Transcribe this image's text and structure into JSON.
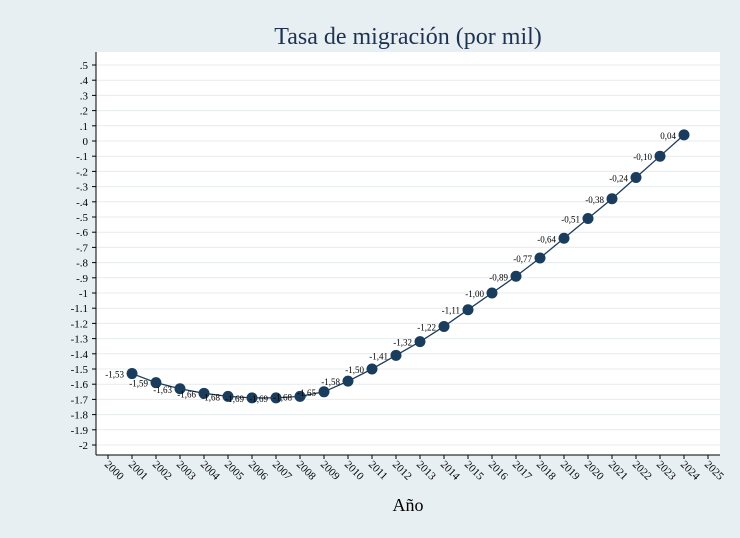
{
  "chart_data": {
    "type": "line",
    "title": "Tasa de migración (por mil)",
    "xlabel": "Año",
    "ylabel": "",
    "x": [
      2001,
      2002,
      2003,
      2004,
      2005,
      2006,
      2007,
      2008,
      2009,
      2010,
      2011,
      2012,
      2013,
      2014,
      2015,
      2016,
      2017,
      2018,
      2019,
      2020,
      2021,
      2022,
      2023,
      2024
    ],
    "values": [
      -1.53,
      -1.59,
      -1.63,
      -1.66,
      -1.68,
      -1.69,
      -1.69,
      -1.68,
      -1.65,
      -1.58,
      -1.5,
      -1.41,
      -1.32,
      -1.22,
      -1.11,
      -1.0,
      -0.89,
      -0.77,
      -0.64,
      -0.51,
      -0.38,
      -0.24,
      -0.1,
      0.04
    ],
    "data_labels": [
      "-1,53",
      "-1,59",
      "-1,63",
      "-1,66",
      "-1,68",
      "-1,69",
      "-1,69",
      "-1,68",
      "-1,65",
      "-1,58",
      "-1,50",
      "-1,41",
      "-1,32",
      "-1,22",
      "-1,11",
      "-1,00",
      "-0,89",
      "-0,77",
      "-0,64",
      "-0,51",
      "-0,38",
      "-0,24",
      "-0,10",
      "0,04"
    ],
    "xticks": [
      2000,
      2001,
      2002,
      2003,
      2004,
      2005,
      2006,
      2007,
      2008,
      2009,
      2010,
      2011,
      2012,
      2013,
      2014,
      2015,
      2016,
      2017,
      2018,
      2019,
      2020,
      2021,
      2022,
      2023,
      2024,
      2025
    ],
    "xlim": [
      2000,
      2025
    ],
    "yticks": [
      0.5,
      0.4,
      0.3,
      0.2,
      0.1,
      0,
      -0.1,
      -0.2,
      -0.3,
      -0.4,
      -0.5,
      -0.6,
      -0.7,
      -0.8,
      -0.9,
      -1,
      -1.1,
      -1.2,
      -1.3,
      -1.4,
      -1.5,
      -1.6,
      -1.7,
      -1.8,
      -1.9,
      -2
    ],
    "ytick_labels": [
      ".5",
      ".4",
      ".3",
      ".2",
      ".1",
      "0",
      "-.1",
      "-.2",
      "-.3",
      "-.4",
      "-.5",
      "-.6",
      "-.7",
      "-.8",
      "-.9",
      "-1",
      "-1.1",
      "-1.2",
      "-1.3",
      "-1.4",
      "-1.5",
      "-1.6",
      "-1.7",
      "-1.8",
      "-1.9",
      "-2"
    ],
    "ylim": [
      -2,
      0.5
    ],
    "grid": true,
    "legend": "none",
    "colors": {
      "line": "#1d3b5c",
      "marker": "#1a3d5e",
      "title": "#1e3353",
      "background": "#e8eff3",
      "plot": "#ffffff"
    }
  }
}
